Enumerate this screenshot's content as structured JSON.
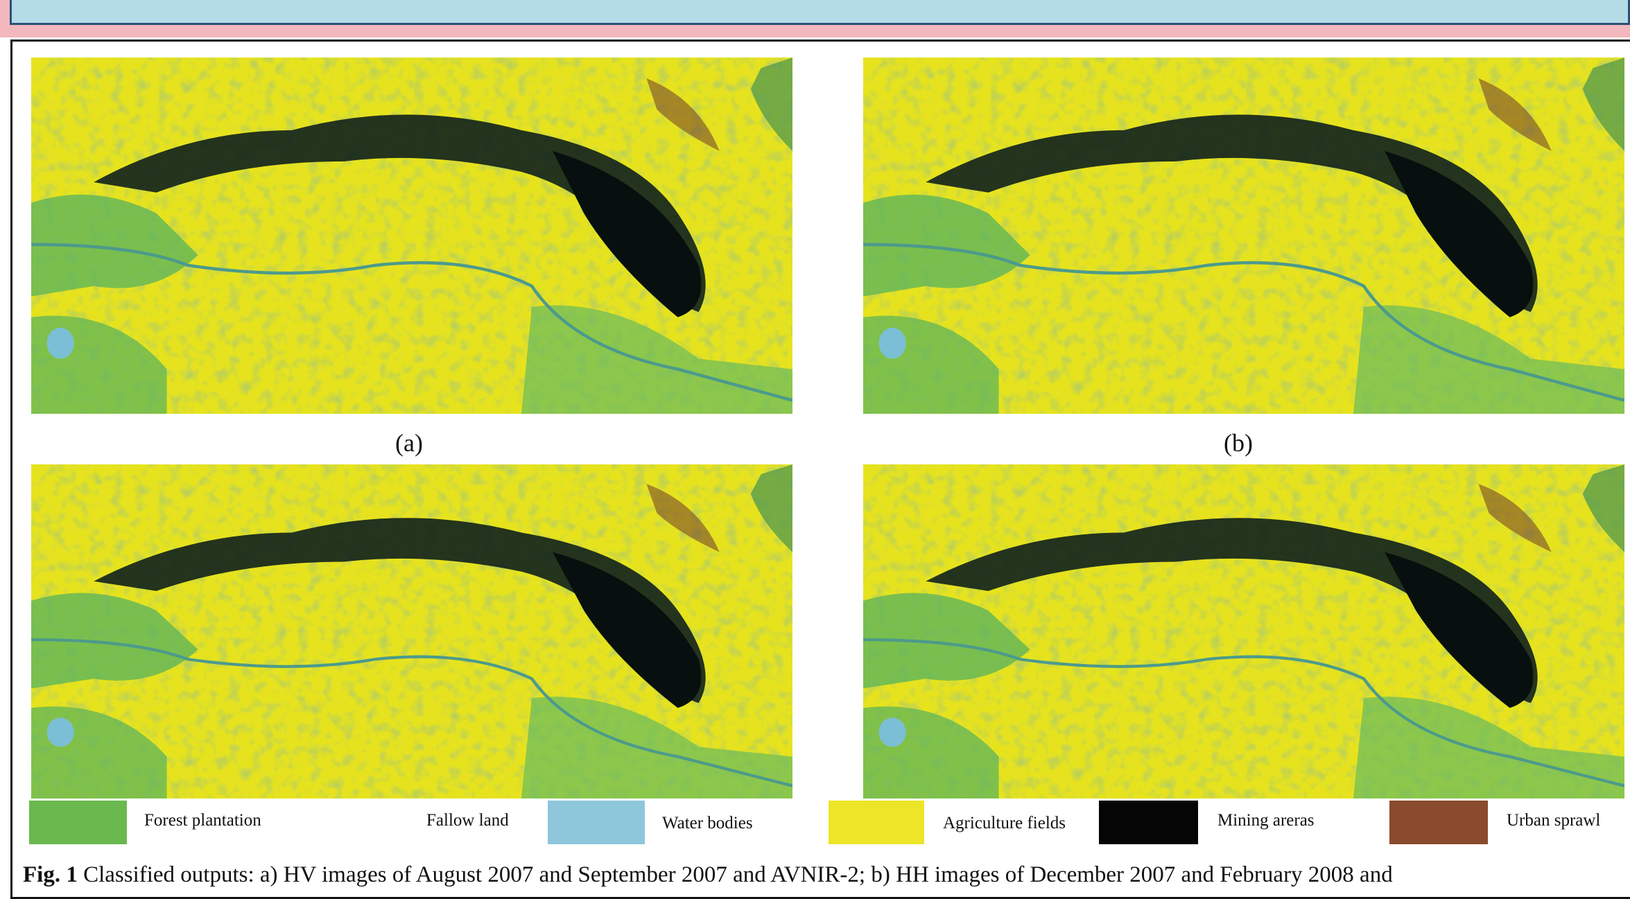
{
  "panels": [
    {
      "label": "(a)"
    },
    {
      "label": "(b)"
    }
  ],
  "legend": [
    "Forest plantation",
    "Fallow land",
    "Water bodies",
    "Agriculture fields",
    "Mining areras",
    "Urban sprawl"
  ],
  "caption": {
    "figure": "Fig. 1",
    "text": "Classified outputs: a) HV images of August 2007 and September 2007 and AVNIR-2; b) HH images of December 2007 and February 2008 and"
  }
}
